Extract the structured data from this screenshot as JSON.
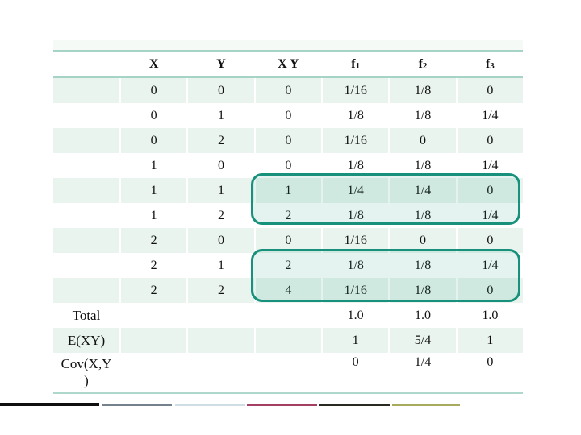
{
  "table": {
    "headers": [
      {
        "base": "X",
        "sub": ""
      },
      {
        "base": "Y",
        "sub": ""
      },
      {
        "base": "X Y",
        "sub": ""
      },
      {
        "base": "f",
        "sub": "1"
      },
      {
        "base": "f",
        "sub": "2"
      },
      {
        "base": "f",
        "sub": "3"
      }
    ],
    "rows": [
      {
        "x": "0",
        "y": "0",
        "xy": "0",
        "f1": "1/16",
        "f2": "1/8",
        "f3": "0"
      },
      {
        "x": "0",
        "y": "1",
        "xy": "0",
        "f1": "1/8",
        "f2": "1/8",
        "f3": "1/4"
      },
      {
        "x": "0",
        "y": "2",
        "xy": "0",
        "f1": "1/16",
        "f2": "0",
        "f3": "0"
      },
      {
        "x": "1",
        "y": "0",
        "xy": "0",
        "f1": "1/8",
        "f2": "1/8",
        "f3": "1/4"
      },
      {
        "x": "1",
        "y": "1",
        "xy": "1",
        "f1": "1/4",
        "f2": "1/4",
        "f3": "0"
      },
      {
        "x": "1",
        "y": "2",
        "xy": "2",
        "f1": "1/8",
        "f2": "1/8",
        "f3": "1/4"
      },
      {
        "x": "2",
        "y": "0",
        "xy": "0",
        "f1": "1/16",
        "f2": "0",
        "f3": "0"
      },
      {
        "x": "2",
        "y": "1",
        "xy": "2",
        "f1": "1/8",
        "f2": "1/8",
        "f3": "1/4"
      },
      {
        "x": "2",
        "y": "2",
        "xy": "4",
        "f1": "1/16",
        "f2": "1/8",
        "f3": "0"
      }
    ],
    "summary": {
      "total": {
        "label": "Total",
        "f1": "1.0",
        "f2": "1.0",
        "f3": "1.0"
      },
      "exy": {
        "label": "E(XY)",
        "f1": "1",
        "f2": "5/4",
        "f3": "1"
      },
      "cov": {
        "label_line1": "Cov(X,Y",
        "label_line2": ")",
        "f1": "0",
        "f2": "1/4",
        "f3": "0"
      }
    }
  },
  "highlights": [
    {
      "name": "rows X=1 with XY>0",
      "border": "#17917c",
      "fill": "#d8efe6"
    },
    {
      "name": "rows X=2 with XY>0",
      "border": "#17917c",
      "fill": "#d8efe6"
    }
  ],
  "colors": {
    "table_line": "#a5d4c7",
    "row_stripe": "#e9f4ee",
    "text": "#111111"
  },
  "footer_lines": [
    {
      "name": "black",
      "color": "#0f0f0f"
    },
    {
      "name": "slate-gray",
      "color": "#76818e"
    },
    {
      "name": "light-blue",
      "color": "#cfdde4"
    },
    {
      "name": "maroon",
      "color": "#a23f63"
    },
    {
      "name": "dark-olive",
      "color": "#2a2a20"
    },
    {
      "name": "olive",
      "color": "#a8aa5e"
    }
  ]
}
